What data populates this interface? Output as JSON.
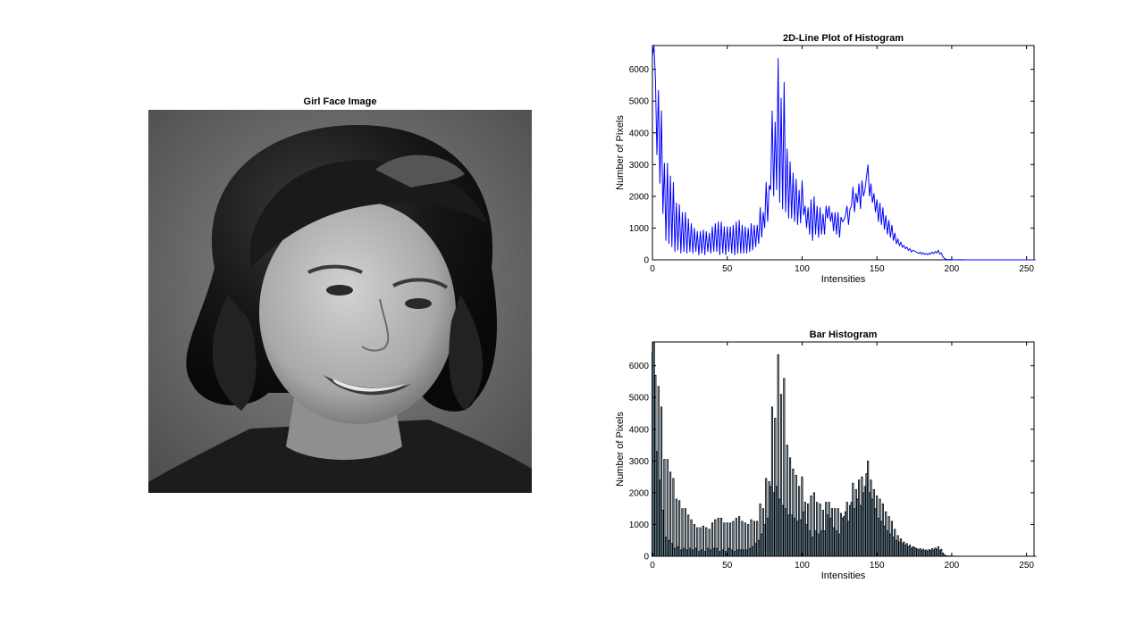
{
  "image_panel": {
    "title": "Girl Face Image",
    "subject": "grayscale portrait photograph of a smiling young woman with curled dark hair"
  },
  "chart_data": [
    {
      "type": "line",
      "title": "2D-Line Plot of Histogram",
      "xlabel": "Intensities",
      "ylabel": "Number of Pixels",
      "xlim": [
        0,
        255
      ],
      "ylim": [
        0,
        6750
      ],
      "xticks": [
        0,
        50,
        100,
        150,
        200,
        250
      ],
      "yticks": [
        0,
        1000,
        2000,
        3000,
        4000,
        5000,
        6000
      ],
      "grid": false,
      "series": [
        {
          "color": "#0000ff",
          "x_start": 0,
          "x_step": 1,
          "values": [
            6400,
            6750,
            5700,
            3300,
            5350,
            2400,
            4700,
            1450,
            3050,
            600,
            3050,
            500,
            2650,
            400,
            2450,
            250,
            1800,
            300,
            1750,
            200,
            1500,
            250,
            1500,
            200,
            1300,
            250,
            1150,
            200,
            1000,
            250,
            900,
            150,
            900,
            200,
            950,
            150,
            900,
            250,
            850,
            200,
            1050,
            250,
            1150,
            250,
            1200,
            150,
            1200,
            200,
            1050,
            150,
            1050,
            250,
            1050,
            200,
            1100,
            150,
            1200,
            200,
            1250,
            200,
            1100,
            200,
            1050,
            200,
            1000,
            250,
            1150,
            300,
            1100,
            400,
            1100,
            500,
            1650,
            700,
            1500,
            1000,
            2450,
            1200,
            2350,
            2200,
            4700,
            2000,
            4350,
            2200,
            6350,
            1800,
            5100,
            1600,
            5600,
            1500,
            3500,
            1300,
            3100,
            1300,
            2750,
            1200,
            2550,
            1100,
            2200,
            1150,
            2500,
            1400,
            1700,
            1000,
            1650,
            800,
            1900,
            600,
            2000,
            800,
            1700,
            700,
            1650,
            800,
            1450,
            800,
            1700,
            1300,
            1700,
            1200,
            1500,
            900,
            1500,
            800,
            1500,
            700,
            1350,
            1200,
            1250,
            1400,
            1700,
            1100,
            1600,
            1700,
            2300,
            1500,
            2100,
            1800,
            2400,
            1600,
            2500,
            2000,
            2200,
            2600,
            3000,
            2000,
            2400,
            1800,
            2100,
            1500,
            1900,
            1200,
            1800,
            1100,
            1650,
            950,
            1400,
            800,
            1250,
            700,
            1100,
            600,
            850,
            500,
            650,
            450,
            550,
            400,
            450,
            350,
            400,
            300,
            350,
            250,
            300,
            280,
            250,
            230,
            200,
            240,
            180,
            220,
            170,
            200,
            160,
            210,
            180,
            240,
            200,
            260,
            220,
            300,
            180,
            220,
            100,
            50,
            20,
            10,
            10,
            10,
            5,
            5,
            5,
            3,
            3,
            2,
            2,
            2,
            2,
            1,
            1,
            1,
            1,
            1,
            1,
            1,
            1,
            1,
            1,
            1,
            1,
            1,
            1,
            1,
            1,
            1,
            1,
            1,
            1,
            1,
            1,
            1,
            1,
            1,
            1,
            1,
            1,
            1,
            1,
            1,
            1,
            1,
            1,
            1,
            1,
            1,
            1,
            1,
            1,
            1,
            1,
            1,
            1,
            1,
            1,
            1,
            1
          ]
        }
      ]
    },
    {
      "type": "bar",
      "title": "Bar Histogram",
      "xlabel": "Intensities",
      "ylabel": "Number of Pixels",
      "xlim": [
        0,
        255
      ],
      "ylim": [
        0,
        6750
      ],
      "xticks": [
        0,
        50,
        100,
        150,
        200,
        250
      ],
      "yticks": [
        0,
        1000,
        2000,
        3000,
        4000,
        5000,
        6000
      ],
      "grid": false,
      "bar_face_color": "#a9d3ee",
      "bar_edge_color": "#000000",
      "series_ref": "same values as the line plot"
    }
  ]
}
